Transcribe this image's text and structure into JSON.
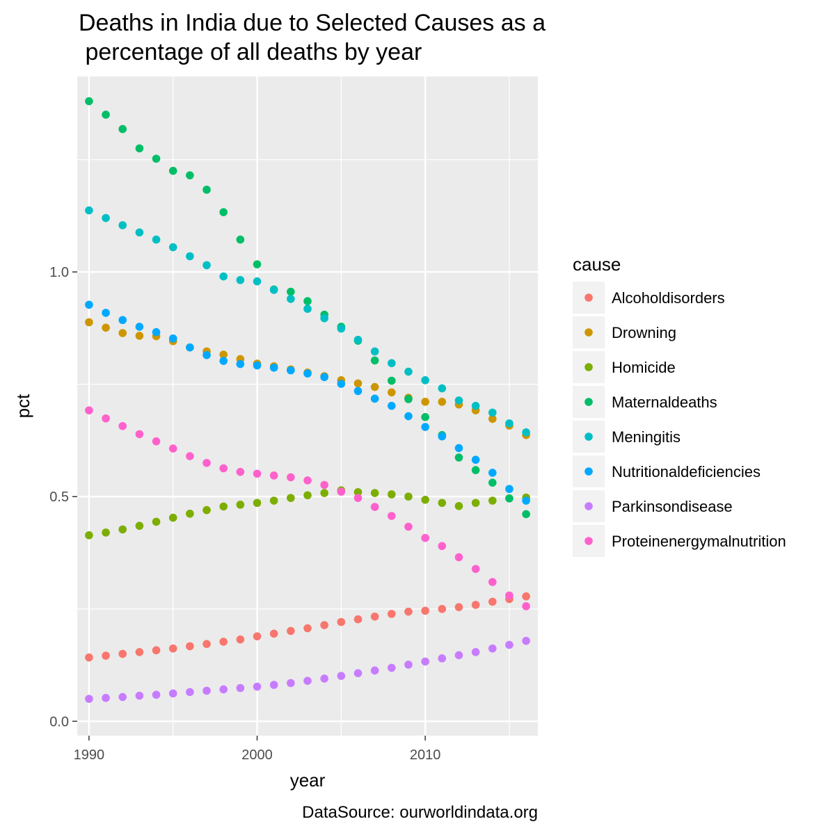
{
  "chart_data": {
    "type": "scatter",
    "title_lines": [
      "Deaths in India due to Selected Causes as a",
      " percentage of all deaths by year"
    ],
    "xlabel": "year",
    "ylabel": "pct",
    "caption": "DataSource: ourworldindata.org",
    "legend_title": "cause",
    "legend_position": "right",
    "grid": true,
    "xlim": [
      1989.3,
      2016.7
    ],
    "ylim": [
      -0.032,
      1.435
    ],
    "x_major_ticks": [
      1990,
      2000,
      2010
    ],
    "x_minor_ticks": [
      1995,
      2005,
      2015
    ],
    "y_major_ticks": [
      0.0,
      0.5,
      1.0
    ],
    "y_major_tick_labels": [
      "0.0",
      "0.5",
      "1.0"
    ],
    "y_minor_ticks": [
      0.25,
      0.75,
      1.25
    ],
    "x": [
      1990,
      1991,
      1992,
      1993,
      1994,
      1995,
      1996,
      1997,
      1998,
      1999,
      2000,
      2001,
      2002,
      2003,
      2004,
      2005,
      2006,
      2007,
      2008,
      2009,
      2010,
      2011,
      2012,
      2013,
      2014,
      2015,
      2016
    ],
    "series": [
      {
        "name": "Alcoholdisorders",
        "color": "#F8766D",
        "values": [
          0.142,
          0.146,
          0.15,
          0.154,
          0.158,
          0.162,
          0.167,
          0.172,
          0.177,
          0.182,
          0.189,
          0.195,
          0.201,
          0.207,
          0.214,
          0.221,
          0.227,
          0.233,
          0.239,
          0.244,
          0.246,
          0.25,
          0.254,
          0.259,
          0.266,
          0.272,
          0.278
        ]
      },
      {
        "name": "Drowning",
        "color": "#CD9600",
        "values": [
          0.888,
          0.876,
          0.864,
          0.858,
          0.857,
          0.846,
          0.832,
          0.823,
          0.816,
          0.806,
          0.796,
          0.79,
          0.783,
          0.776,
          0.768,
          0.759,
          0.752,
          0.744,
          0.732,
          0.72,
          0.711,
          0.711,
          0.705,
          0.692,
          0.673,
          0.658,
          0.637
        ]
      },
      {
        "name": "Homicide",
        "color": "#7CAE00",
        "values": [
          0.414,
          0.42,
          0.427,
          0.435,
          0.444,
          0.453,
          0.462,
          0.47,
          0.478,
          0.482,
          0.486,
          0.491,
          0.497,
          0.503,
          0.508,
          0.514,
          0.51,
          0.508,
          0.505,
          0.5,
          0.493,
          0.486,
          0.479,
          0.486,
          0.491,
          0.496,
          0.498
        ]
      },
      {
        "name": "Maternaldeaths",
        "color": "#00BE67",
        "values": [
          1.38,
          1.35,
          1.318,
          1.275,
          1.252,
          1.225,
          1.215,
          1.183,
          1.133,
          1.072,
          1.017,
          0.961,
          0.956,
          0.935,
          0.905,
          0.878,
          0.847,
          0.803,
          0.758,
          0.717,
          0.677,
          0.637,
          0.587,
          0.559,
          0.531,
          0.496,
          0.461
        ]
      },
      {
        "name": "Meningitis",
        "color": "#00BFC4",
        "values": [
          1.137,
          1.12,
          1.104,
          1.088,
          1.072,
          1.055,
          1.035,
          1.015,
          0.99,
          0.982,
          0.979,
          0.96,
          0.94,
          0.918,
          0.897,
          0.874,
          0.849,
          0.823,
          0.797,
          0.778,
          0.759,
          0.741,
          0.714,
          0.702,
          0.687,
          0.663,
          0.643
        ]
      },
      {
        "name": "Nutritionaldeficiencies",
        "color": "#00A9FF",
        "values": [
          0.927,
          0.909,
          0.893,
          0.878,
          0.866,
          0.852,
          0.832,
          0.815,
          0.802,
          0.795,
          0.792,
          0.787,
          0.781,
          0.774,
          0.766,
          0.751,
          0.735,
          0.718,
          0.702,
          0.679,
          0.655,
          0.634,
          0.608,
          0.582,
          0.553,
          0.517,
          0.491
        ]
      },
      {
        "name": "Parkinsondisease",
        "color": "#C77CFF",
        "values": [
          0.05,
          0.052,
          0.054,
          0.057,
          0.059,
          0.062,
          0.065,
          0.068,
          0.071,
          0.074,
          0.077,
          0.081,
          0.085,
          0.09,
          0.095,
          0.101,
          0.107,
          0.113,
          0.119,
          0.126,
          0.133,
          0.14,
          0.147,
          0.154,
          0.162,
          0.17,
          0.179
        ]
      },
      {
        "name": "Proteinenergymalnutrition",
        "color": "#FF61CC",
        "values": [
          0.692,
          0.674,
          0.657,
          0.639,
          0.623,
          0.607,
          0.59,
          0.575,
          0.563,
          0.555,
          0.551,
          0.547,
          0.543,
          0.536,
          0.526,
          0.511,
          0.497,
          0.477,
          0.457,
          0.433,
          0.408,
          0.39,
          0.365,
          0.339,
          0.31,
          0.28,
          0.256
        ]
      }
    ]
  }
}
